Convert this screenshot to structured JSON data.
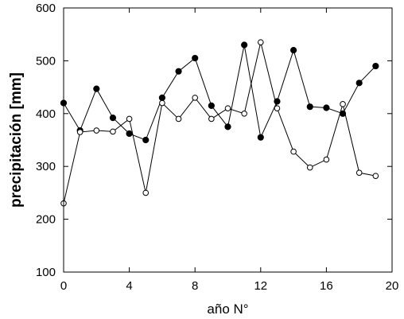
{
  "chart_data": {
    "type": "line",
    "xlabel": "año N°",
    "ylabel": "precipitación [mm]",
    "xlim": [
      0,
      20
    ],
    "ylim": [
      100,
      600
    ],
    "xticks": [
      0,
      4,
      8,
      12,
      16,
      20
    ],
    "yticks": [
      100,
      200,
      300,
      400,
      500,
      600
    ],
    "grid": false,
    "series": [
      {
        "marker": "filled-circle",
        "color": "#000000",
        "x": [
          0,
          1,
          2,
          3,
          4,
          5,
          6,
          7,
          8,
          9,
          10,
          11,
          12,
          13,
          14,
          15,
          16,
          17,
          18,
          19
        ],
        "y": [
          420,
          368,
          447,
          392,
          362,
          350,
          430,
          480,
          505,
          415,
          375,
          530,
          355,
          423,
          520,
          413,
          411,
          400,
          458,
          490
        ]
      },
      {
        "marker": "open-circle",
        "color": "#000000",
        "x": [
          0,
          1,
          2,
          3,
          4,
          5,
          6,
          7,
          8,
          9,
          10,
          11,
          12,
          13,
          14,
          15,
          16,
          17,
          18,
          19
        ],
        "y": [
          230,
          365,
          368,
          366,
          390,
          250,
          420,
          390,
          430,
          390,
          410,
          400,
          535,
          410,
          328,
          298,
          313,
          418,
          288,
          282
        ]
      }
    ]
  }
}
